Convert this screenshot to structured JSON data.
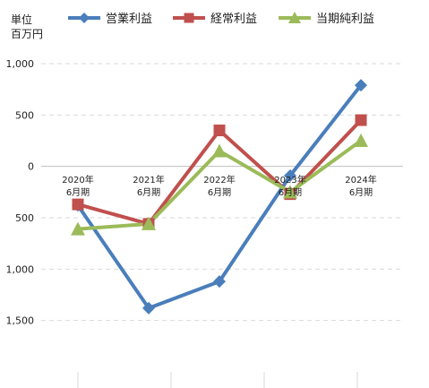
{
  "unit_label": [
    "単位",
    "百万円"
  ],
  "chart_data": {
    "type": "line",
    "categories": [
      [
        "2020年",
        "6月期"
      ],
      [
        "2021年",
        "6月期"
      ],
      [
        "2022年",
        "6月期"
      ],
      [
        "2023年",
        "6月期"
      ],
      [
        "2024年",
        "6月期"
      ]
    ],
    "series": [
      {
        "name": "営業利益",
        "color": "#4a7ebb",
        "marker": "diamond",
        "values": [
          -380,
          -1380,
          -1120,
          -90,
          790
        ]
      },
      {
        "name": "経常利益",
        "color": "#c0504d",
        "marker": "square",
        "values": [
          -370,
          -560,
          350,
          -270,
          450
        ]
      },
      {
        "name": "当期純利益",
        "color": "#9bbb59",
        "marker": "triangle",
        "values": [
          -610,
          -560,
          150,
          -250,
          250
        ]
      }
    ],
    "y_ticks": [
      {
        "value": 1000,
        "label": "1,000"
      },
      {
        "value": 500,
        "label": "500"
      },
      {
        "value": 0,
        "label": "0"
      },
      {
        "value": -500,
        "label": "500"
      },
      {
        "value": -1000,
        "label": "1,000"
      },
      {
        "value": -1500,
        "label": "1,500"
      }
    ],
    "ylim": [
      -2000,
      1000
    ],
    "grid": true,
    "legend": "top"
  }
}
